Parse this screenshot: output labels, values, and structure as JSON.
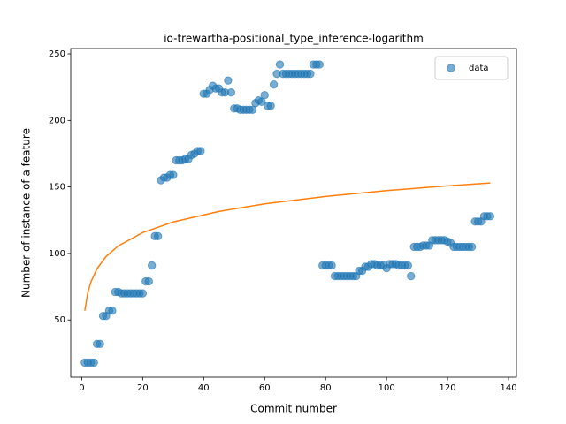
{
  "chart_data": {
    "type": "scatter",
    "title": "io-trewartha-positional_type_inference-logarithm",
    "x_label": "Commit number",
    "y_label": "Number of instance of a feature",
    "xlim": [
      -3.6,
      142.6
    ],
    "ylim": [
      7,
      254
    ],
    "xticks": [
      0,
      20,
      40,
      60,
      80,
      100,
      120,
      140
    ],
    "yticks": [
      50,
      100,
      150,
      200,
      250
    ],
    "legend": "upper right",
    "series": [
      {
        "name": "data",
        "type": "scatter",
        "color": "#1f77b4",
        "x": [
          1,
          2,
          3,
          4,
          5,
          6,
          7,
          8,
          9,
          10,
          11,
          12,
          13,
          14,
          15,
          16,
          17,
          18,
          19,
          20,
          21,
          22,
          23,
          24,
          25,
          26,
          27,
          28,
          29,
          30,
          31,
          32,
          33,
          34,
          35,
          36,
          37,
          38,
          39,
          40,
          41,
          42,
          43,
          44,
          45,
          46,
          47,
          48,
          49,
          50,
          51,
          52,
          53,
          54,
          55,
          56,
          57,
          58,
          59,
          60,
          61,
          62,
          63,
          64,
          65,
          66,
          67,
          68,
          69,
          70,
          71,
          72,
          73,
          74,
          75,
          76,
          77,
          78,
          79,
          80,
          81,
          82,
          83,
          84,
          85,
          86,
          87,
          88,
          89,
          90,
          91,
          92,
          93,
          94,
          95,
          96,
          97,
          98,
          99,
          100,
          101,
          102,
          103,
          104,
          105,
          106,
          107,
          108,
          109,
          110,
          111,
          112,
          113,
          114,
          115,
          116,
          117,
          118,
          119,
          120,
          121,
          122,
          123,
          124,
          125,
          126,
          127,
          128,
          129,
          130,
          131,
          132,
          133,
          134
        ],
        "values": [
          18,
          18,
          18,
          18,
          32,
          32,
          53,
          53,
          57,
          57,
          71,
          71,
          70,
          70,
          70,
          70,
          70,
          70,
          70,
          70,
          79,
          79,
          91,
          113,
          113,
          155,
          157,
          157,
          159,
          159,
          170,
          170,
          170,
          171,
          171,
          174,
          175,
          177,
          177,
          220,
          220,
          223,
          226,
          224,
          224,
          221,
          221,
          230,
          221,
          209,
          209,
          208,
          208,
          208,
          208,
          208,
          213,
          215,
          214,
          219,
          211,
          211,
          227,
          235,
          242,
          235,
          235,
          235,
          235,
          235,
          235,
          235,
          235,
          235,
          235,
          242,
          242,
          242,
          91,
          91,
          91,
          91,
          83,
          83,
          83,
          83,
          83,
          83,
          83,
          83,
          87,
          87,
          90,
          90,
          92,
          92,
          91,
          91,
          91,
          89,
          92,
          92,
          92,
          91,
          91,
          91,
          91,
          83,
          105,
          105,
          105,
          106,
          106,
          106,
          110,
          110,
          110,
          110,
          110,
          109,
          108,
          105,
          105,
          105,
          105,
          105,
          105,
          105,
          124,
          124,
          124,
          128,
          128,
          128
        ]
      },
      {
        "type": "line",
        "color": "#ff7f0e",
        "x": [
          1,
          2,
          3,
          5,
          8,
          12,
          20,
          30,
          45,
          60,
          80,
          100,
          120,
          134
        ],
        "values": [
          57,
          70.6,
          78.5,
          88.5,
          97.8,
          105.7,
          115.7,
          123.7,
          131.6,
          137.3,
          142.9,
          147.3,
          150.8,
          153
        ]
      }
    ]
  }
}
